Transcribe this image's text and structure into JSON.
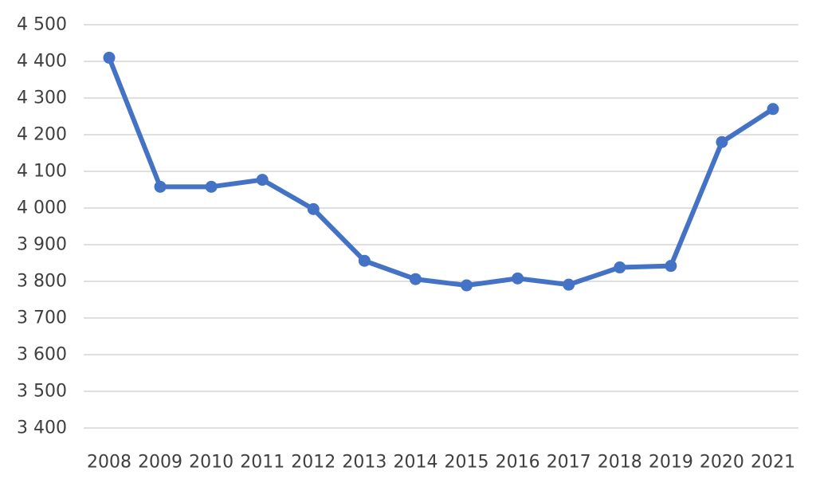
{
  "chart_data": {
    "type": "line",
    "title": "",
    "xlabel": "",
    "ylabel": "",
    "categories": [
      "2008",
      "2009",
      "2010",
      "2011",
      "2012",
      "2013",
      "2014",
      "2015",
      "2016",
      "2017",
      "2018",
      "2019",
      "2020",
      "2021"
    ],
    "series": [
      {
        "values": [
          4410,
          4058,
          4058,
          4077,
          3997,
          3856,
          3806,
          3789,
          3808,
          3791,
          3838,
          3842,
          4180,
          4270
        ]
      }
    ],
    "ylim": [
      3400,
      4500
    ],
    "yticks": [
      3400,
      3500,
      3600,
      3700,
      3800,
      3900,
      4000,
      4100,
      4200,
      4300,
      4400,
      4500
    ],
    "ytick_labels": [
      "3 400",
      "3 500",
      "3 600",
      "3 700",
      "3 800",
      "3 900",
      "4 000",
      "4 100",
      "4 200",
      "4 300",
      "4 400",
      "4 500"
    ],
    "grid": true,
    "legend": "none",
    "colors": {
      "series": "#4472C4",
      "grid": "#BFBFBF",
      "text": "#404040"
    }
  }
}
